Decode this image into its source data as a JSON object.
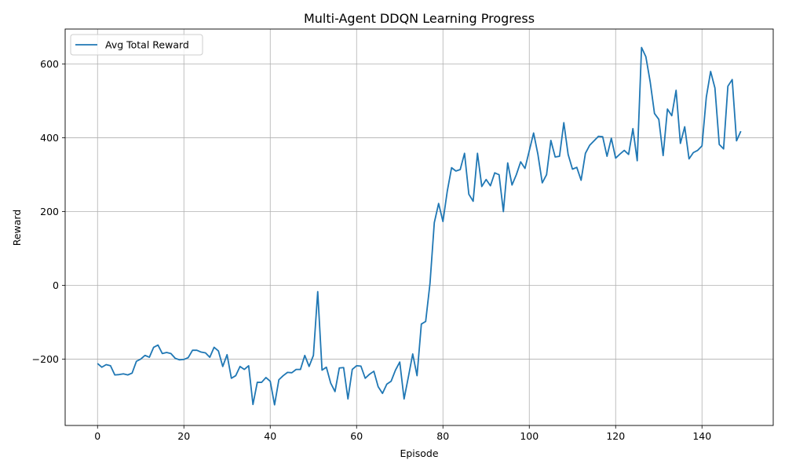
{
  "chart_data": {
    "type": "line",
    "title": "Multi-Agent DDQN Learning Progress",
    "xlabel": "Episode",
    "ylabel": "Reward",
    "xlim": [
      -7.5,
      156.5
    ],
    "ylim": [
      -380,
      695
    ],
    "xticks": [
      0,
      20,
      40,
      60,
      80,
      100,
      120,
      140
    ],
    "yticks": [
      -200,
      0,
      200,
      400,
      600
    ],
    "grid": true,
    "legend": "top-left",
    "colors": {
      "line": "#1f77b4",
      "grid": "#b0b0b0"
    },
    "series": [
      {
        "name": "Avg Total Reward",
        "x": [
          0,
          1,
          2,
          3,
          4,
          5,
          6,
          7,
          8,
          9,
          10,
          11,
          12,
          13,
          14,
          15,
          16,
          17,
          18,
          19,
          20,
          21,
          22,
          23,
          24,
          25,
          26,
          27,
          28,
          29,
          30,
          31,
          32,
          33,
          34,
          35,
          36,
          37,
          38,
          39,
          40,
          41,
          42,
          43,
          44,
          45,
          46,
          47,
          48,
          49,
          50,
          51,
          52,
          53,
          54,
          55,
          56,
          57,
          58,
          59,
          60,
          61,
          62,
          63,
          64,
          65,
          66,
          67,
          68,
          69,
          70,
          71,
          72,
          73,
          74,
          75,
          76,
          77,
          78,
          79,
          80,
          81,
          82,
          83,
          84,
          85,
          86,
          87,
          88,
          89,
          90,
          91,
          92,
          93,
          94,
          95,
          96,
          97,
          98,
          99,
          100,
          101,
          102,
          103,
          104,
          105,
          106,
          107,
          108,
          109,
          110,
          111,
          112,
          113,
          114,
          115,
          116,
          117,
          118,
          119,
          120,
          121,
          122,
          123,
          124,
          125,
          126,
          127,
          128,
          129,
          130,
          131,
          132,
          133,
          134,
          135,
          136,
          137,
          138,
          139,
          140,
          141,
          142,
          143,
          144,
          145,
          146,
          147,
          148,
          149
        ],
        "values": [
          -212,
          -222,
          -215,
          -218,
          -243,
          -242,
          -240,
          -243,
          -238,
          -206,
          -200,
          -190,
          -195,
          -168,
          -162,
          -185,
          -182,
          -185,
          -198,
          -202,
          -201,
          -196,
          -176,
          -176,
          -181,
          -183,
          -195,
          -168,
          -178,
          -220,
          -188,
          -252,
          -245,
          -220,
          -228,
          -218,
          -323,
          -263,
          -263,
          -250,
          -260,
          -324,
          -256,
          -245,
          -236,
          -237,
          -228,
          -228,
          -190,
          -220,
          -190,
          -17,
          -230,
          -222,
          -265,
          -288,
          -224,
          -223,
          -308,
          -228,
          -218,
          -219,
          -252,
          -241,
          -233,
          -275,
          -293,
          -268,
          -260,
          -230,
          -208,
          -308,
          -248,
          -186,
          -245,
          -105,
          -98,
          5,
          170,
          222,
          173,
          255,
          319,
          310,
          314,
          358,
          247,
          228,
          358,
          268,
          287,
          270,
          305,
          300,
          200,
          332,
          272,
          300,
          335,
          317,
          365,
          413,
          355,
          278,
          300,
          393,
          348,
          350,
          441,
          355,
          315,
          320,
          285,
          358,
          380,
          392,
          404,
          403,
          350,
          399,
          345,
          356,
          366,
          355,
          425,
          338,
          645,
          620,
          552,
          466,
          450,
          352,
          478,
          460,
          529,
          385,
          430,
          343,
          360,
          366,
          378,
          510,
          580,
          535,
          382,
          370,
          540,
          558,
          392,
          418
        ]
      }
    ]
  }
}
